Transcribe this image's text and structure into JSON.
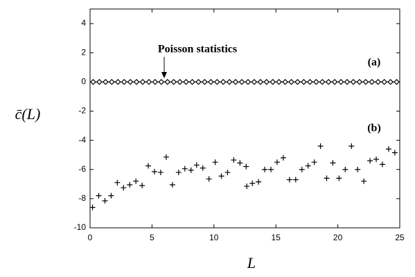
{
  "chart_data": {
    "type": "scatter",
    "xlabel": "L",
    "ylabel": "c̄(L)",
    "annotations": [
      "Poisson statistics",
      "(a)",
      "(b)"
    ],
    "xlim": [
      0,
      25
    ],
    "ylim": [
      -10,
      5
    ],
    "xticks": [
      0,
      5,
      10,
      15,
      20,
      25
    ],
    "yticks": [
      -10,
      -8,
      -6,
      -4,
      -2,
      0,
      2,
      4
    ],
    "series": [
      {
        "marker": "diamond",
        "color": "#000000",
        "x": [
          0.25,
          0.75,
          1.25,
          1.75,
          2.25,
          2.75,
          3.25,
          3.75,
          4.25,
          4.75,
          5.25,
          5.75,
          6.25,
          6.75,
          7.25,
          7.75,
          8.25,
          8.75,
          9.25,
          9.75,
          10.25,
          10.75,
          11.25,
          11.75,
          12.25,
          12.75,
          13.25,
          13.75,
          14.25,
          14.75,
          15.25,
          15.75,
          16.25,
          16.75,
          17.25,
          17.75,
          18.25,
          18.75,
          19.25,
          19.75,
          20.25,
          20.75,
          21.25,
          21.75,
          22.25,
          22.75,
          23.25,
          23.75,
          24.25,
          24.75
        ],
        "values": [
          0,
          0,
          0,
          0,
          0,
          0,
          0,
          0,
          0,
          0,
          0,
          0,
          0,
          0,
          0,
          0,
          0,
          0,
          0,
          0,
          0,
          0,
          0,
          0,
          0,
          0,
          0,
          0,
          0,
          0,
          0,
          0,
          0,
          0,
          0,
          0,
          0,
          0,
          0,
          0,
          0,
          0,
          0,
          0,
          0,
          0,
          0,
          0,
          0,
          0
        ]
      },
      {
        "marker": "plus",
        "color": "#000000",
        "x": [
          0.2,
          0.7,
          1.2,
          1.7,
          2.2,
          2.7,
          3.2,
          3.7,
          4.2,
          4.7,
          5.2,
          5.7,
          6.15,
          6.65,
          7.15,
          7.65,
          8.15,
          8.6,
          9.1,
          9.6,
          10.1,
          10.6,
          11.1,
          11.6,
          12.1,
          12.6,
          12.65,
          13.1,
          13.6,
          14.1,
          14.6,
          15.1,
          15.6,
          16.1,
          16.6,
          17.1,
          17.6,
          18.1,
          18.6,
          19.1,
          19.6,
          20.1,
          20.6,
          21.1,
          21.6,
          22.1,
          22.6,
          23.1,
          23.6,
          24.1,
          24.6
        ],
        "values": [
          -8.6,
          -7.8,
          -8.15,
          -7.8,
          -6.9,
          -7.25,
          -7.05,
          -6.8,
          -7.1,
          -5.75,
          -6.15,
          -6.2,
          -5.15,
          -7.05,
          -6.2,
          -5.95,
          -6.05,
          -5.7,
          -5.9,
          -6.65,
          -5.5,
          -6.45,
          -6.2,
          -5.35,
          -5.55,
          -5.8,
          -7.15,
          -6.95,
          -6.85,
          -6.0,
          -6.0,
          -5.5,
          -5.2,
          -6.7,
          -6.7,
          -6.0,
          -5.75,
          -5.5,
          -4.4,
          -6.6,
          -5.55,
          -6.6,
          -6.0,
          -4.4,
          -6.0,
          -6.8,
          -5.4,
          -5.3,
          -5.65,
          -4.6,
          -4.85
        ]
      }
    ]
  }
}
